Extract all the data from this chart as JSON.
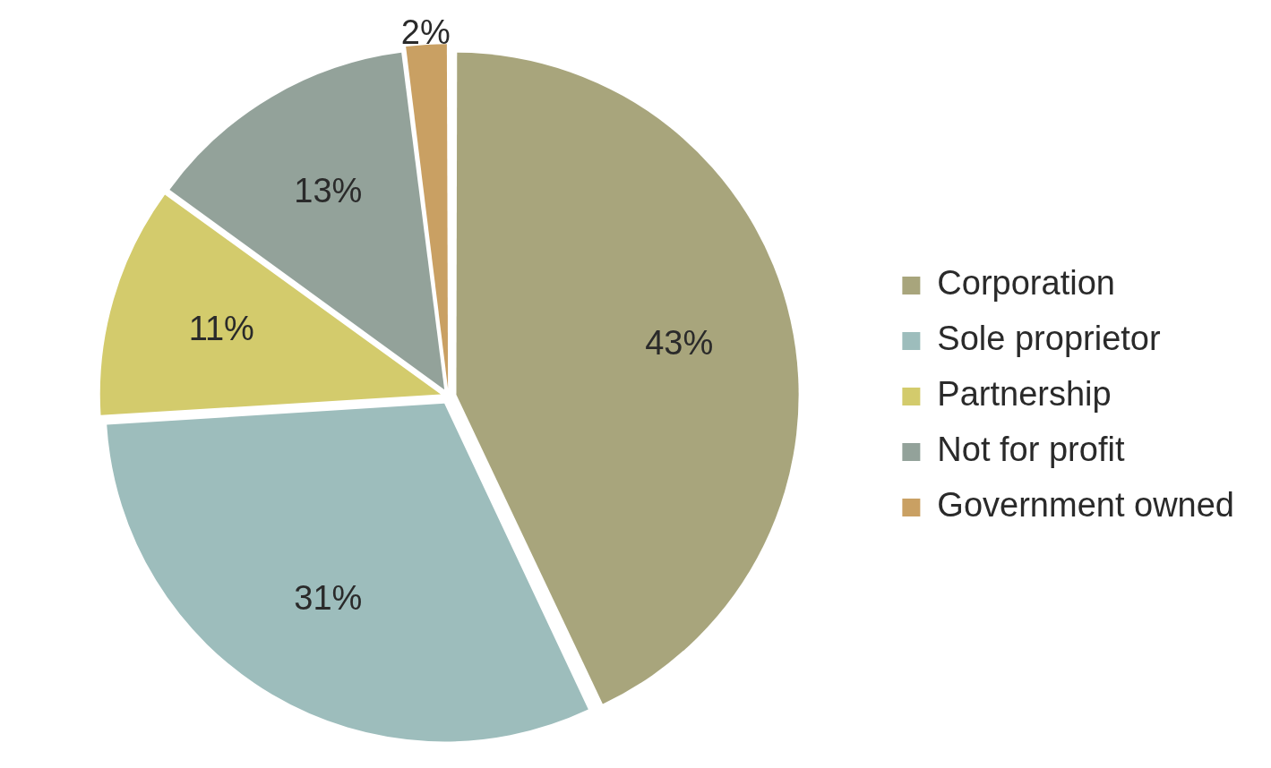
{
  "chart_data": {
    "type": "pie",
    "categories": [
      "Corporation",
      "Sole proprietor",
      "Partnership",
      "Not for profit",
      "Government owned"
    ],
    "values": [
      43,
      31,
      11,
      13,
      2
    ],
    "colors": [
      "#a8a57c",
      "#9dbdbc",
      "#d3cb6c",
      "#93a29a",
      "#c9a063"
    ],
    "value_labels": [
      "43%",
      "31%",
      "11%",
      "13%",
      "2%"
    ],
    "legend": "right"
  }
}
